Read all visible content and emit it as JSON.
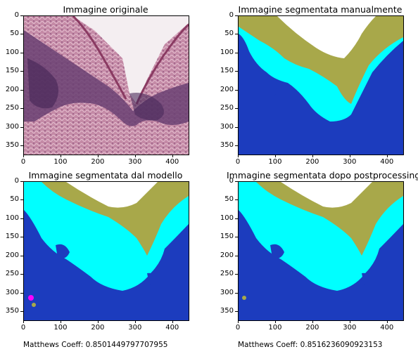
{
  "panels": [
    {
      "title": "Immagine originale",
      "kind": "photo"
    },
    {
      "title": "Immagine segmentata manualmente",
      "kind": "manual"
    },
    {
      "title": "Immagine segmentata dal modello",
      "kind": "model"
    },
    {
      "title": "Immagine segmentata dopo postprocessing",
      "kind": "post"
    }
  ],
  "y_ticks": [
    "0",
    "50",
    "100",
    "150",
    "200",
    "250",
    "300",
    "350"
  ],
  "x_ticks": [
    "0",
    "100",
    "200",
    "300",
    "400"
  ],
  "footer": {
    "left": "Matthews Coeff: 0.8501449797707955",
    "right": "Matthews Coeff: 0.8516236090923153"
  },
  "colors": {
    "background_class": "#1c3cbe",
    "cyan_class": "#00ffff",
    "olive_class": "#a8a84a",
    "white_class": "#ffffff",
    "magenta_class": "#ff00ff"
  }
}
